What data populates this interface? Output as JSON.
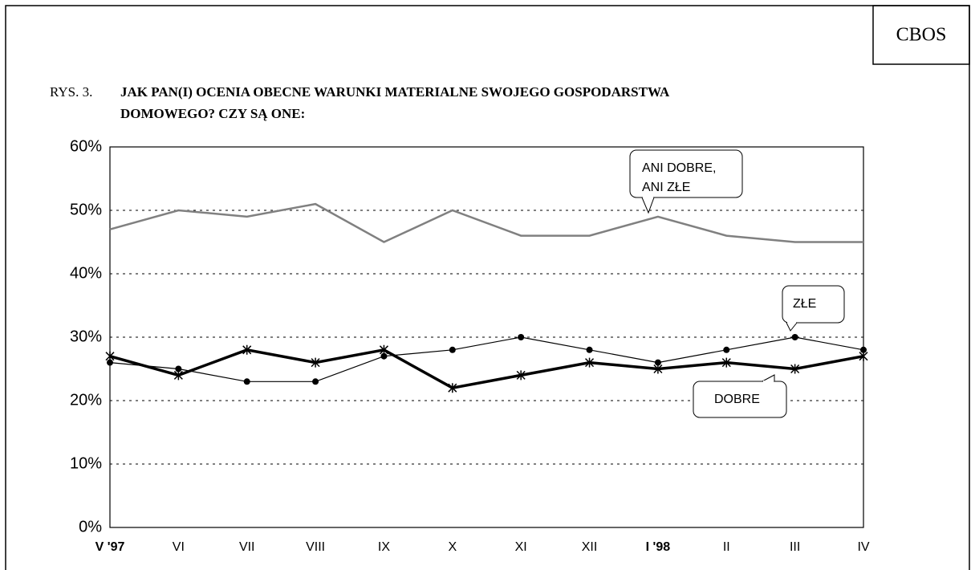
{
  "chart_data": {
    "type": "line",
    "source": "CBOS",
    "figure_label": "RYS. 3.",
    "title": [
      "JAK PAN(I) OCENIA OBECNE WARUNKI MATERIALNE SWOJEGO GOSPODARSTWA",
      "DOMOWEGO? CZY SĄ ONE:"
    ],
    "categories": [
      "V '97",
      "VI",
      "VII",
      "VIII",
      "IX",
      "X",
      "XI",
      "XII",
      "I '98",
      "II",
      "III",
      "IV"
    ],
    "series": [
      {
        "name": "ANI DOBRE, ANI ZŁE",
        "color": "#808080",
        "line_width": 2.5,
        "marker": null,
        "values": [
          47,
          50,
          49,
          51,
          45,
          50,
          46,
          46,
          49,
          46,
          45,
          45
        ]
      },
      {
        "name": "ZŁE",
        "color": "#000000",
        "line_width": 1.2,
        "marker": "dot",
        "values": [
          26,
          25,
          23,
          23,
          27,
          28,
          30,
          28,
          26,
          28,
          30,
          28
        ]
      },
      {
        "name": "DOBRE",
        "color": "#000000",
        "line_width": 3.5,
        "marker": "star",
        "values": [
          27,
          24,
          28,
          26,
          28,
          22,
          24,
          26,
          25,
          26,
          25,
          27
        ]
      }
    ],
    "ylim": [
      0,
      60
    ],
    "yticks": [
      {
        "value": 0,
        "label": "0%"
      },
      {
        "value": 10,
        "label": "10%"
      },
      {
        "value": 20,
        "label": "20%"
      },
      {
        "value": 30,
        "label": "30%"
      },
      {
        "value": 40,
        "label": "40%"
      },
      {
        "value": 50,
        "label": "50%"
      },
      {
        "value": 60,
        "label": "60%"
      }
    ],
    "grid": true
  }
}
